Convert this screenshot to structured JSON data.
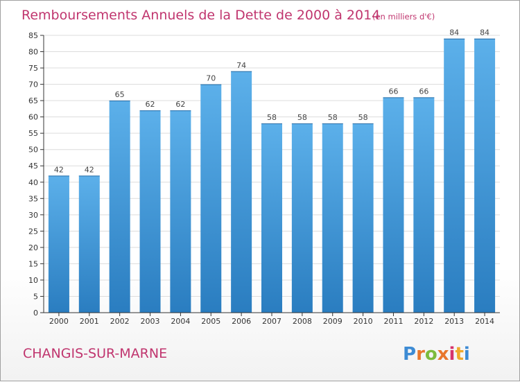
{
  "chart_data": {
    "type": "bar",
    "title": "Remboursements Annuels de la Dette de 2000 à 2014",
    "unit_note": "(en milliers d'€)",
    "categories": [
      "2000",
      "2001",
      "2002",
      "2003",
      "2004",
      "2005",
      "2006",
      "2007",
      "2008",
      "2009",
      "2010",
      "2011",
      "2012",
      "2013",
      "2014"
    ],
    "values": [
      42,
      42,
      65,
      62,
      62,
      70,
      74,
      58,
      58,
      58,
      58,
      66,
      66,
      84,
      84
    ],
    "ylim": [
      0,
      85
    ],
    "ytick_step": 5,
    "xlabel": "",
    "ylabel": "",
    "bar_color_top": "#5cb0ea",
    "bar_color_bottom": "#2a7dc0"
  },
  "footer": {
    "commune": "CHANGIS-SUR-MARNE",
    "brand_letters": [
      "P",
      "r",
      "o",
      "x",
      "i",
      "t",
      "i"
    ],
    "brand_colors": [
      "#3d8bd4",
      "#e8762c",
      "#7dbb3d",
      "#e8762c",
      "#d6336c",
      "#f0a82a",
      "#3d8bd4"
    ]
  }
}
